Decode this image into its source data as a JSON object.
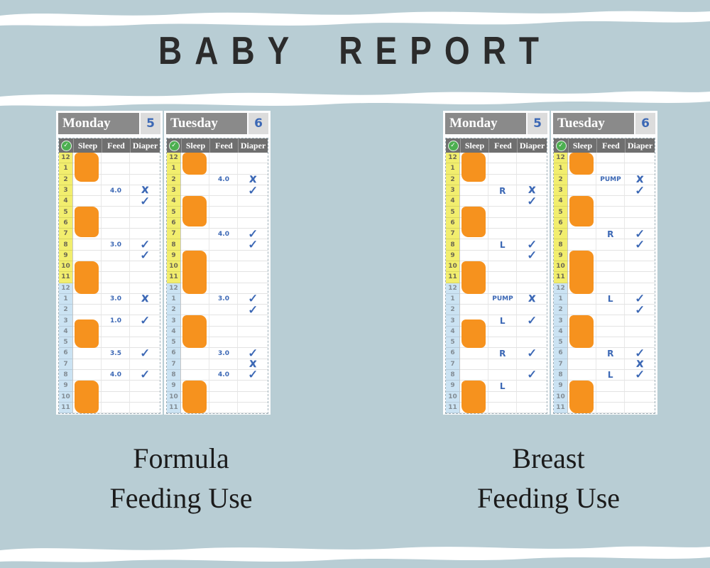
{
  "title": "BABY REPORT",
  "captions": {
    "formula": {
      "line1": "Formula",
      "line2": "Feeding Use"
    },
    "breast": {
      "line1": "Breast",
      "line2": "Feeding Use"
    }
  },
  "table": {
    "columns": [
      "Sleep",
      "Feed",
      "Diaper"
    ],
    "check_header_icon": "check-circle-icon",
    "check_glyph": "✓",
    "x_glyph": "X",
    "hours_am": [
      "12",
      "1",
      "2",
      "3",
      "4",
      "5",
      "6",
      "7",
      "8",
      "9",
      "10",
      "11"
    ],
    "hours_pm": [
      "12",
      "1",
      "2",
      "3",
      "4",
      "5",
      "6",
      "7",
      "8",
      "9",
      "10",
      "11"
    ]
  },
  "charts": [
    {
      "group": "formula",
      "day": "Monday",
      "day_number": "5",
      "sleep_blocks": [
        {
          "start": 0,
          "span": 2.7
        },
        {
          "start": 5,
          "span": 2.8
        },
        {
          "start": 10,
          "span": 3
        },
        {
          "start": 15.4,
          "span": 2.6
        },
        {
          "start": 21,
          "span": 3
        }
      ],
      "feeds": [
        {
          "row": 3,
          "text": "4.0"
        },
        {
          "row": 8,
          "text": "3.0"
        },
        {
          "row": 13,
          "text": "3.0"
        },
        {
          "row": 15,
          "text": "1.0"
        },
        {
          "row": 18,
          "text": "3.5"
        },
        {
          "row": 20,
          "text": "4.0"
        }
      ],
      "diapers": [
        {
          "row": 3,
          "mark": "x"
        },
        {
          "row": 4,
          "mark": "check"
        },
        {
          "row": 8,
          "mark": "check"
        },
        {
          "row": 9,
          "mark": "check"
        },
        {
          "row": 13,
          "mark": "x"
        },
        {
          "row": 15,
          "mark": "check"
        },
        {
          "row": 18,
          "mark": "check"
        },
        {
          "row": 20,
          "mark": "check"
        }
      ]
    },
    {
      "group": "formula",
      "day": "Tuesday",
      "day_number": "6",
      "sleep_blocks": [
        {
          "start": 0,
          "span": 2
        },
        {
          "start": 4,
          "span": 2.8
        },
        {
          "start": 9,
          "span": 4
        },
        {
          "start": 15,
          "span": 3
        },
        {
          "start": 21,
          "span": 3
        }
      ],
      "feeds": [
        {
          "row": 2,
          "text": "4.0"
        },
        {
          "row": 7,
          "text": "4.0"
        },
        {
          "row": 13,
          "text": "3.0"
        },
        {
          "row": 18,
          "text": "3.0"
        },
        {
          "row": 20,
          "text": "4.0"
        }
      ],
      "diapers": [
        {
          "row": 2,
          "mark": "x"
        },
        {
          "row": 3,
          "mark": "check"
        },
        {
          "row": 7,
          "mark": "check"
        },
        {
          "row": 8,
          "mark": "check"
        },
        {
          "row": 13,
          "mark": "check"
        },
        {
          "row": 14,
          "mark": "check"
        },
        {
          "row": 18,
          "mark": "check"
        },
        {
          "row": 19,
          "mark": "x"
        },
        {
          "row": 20,
          "mark": "check"
        }
      ]
    },
    {
      "group": "breast",
      "day": "Monday",
      "day_number": "5",
      "sleep_blocks": [
        {
          "start": 0,
          "span": 2.7
        },
        {
          "start": 5,
          "span": 2.8
        },
        {
          "start": 10,
          "span": 3
        },
        {
          "start": 15.4,
          "span": 2.6
        },
        {
          "start": 21,
          "span": 3
        }
      ],
      "feeds": [
        {
          "row": 3,
          "text": "R"
        },
        {
          "row": 8,
          "text": "L"
        },
        {
          "row": 13,
          "text": "PUMP"
        },
        {
          "row": 15,
          "text": "L"
        },
        {
          "row": 18,
          "text": "R"
        },
        {
          "row": 21,
          "text": "L"
        }
      ],
      "diapers": [
        {
          "row": 3,
          "mark": "x"
        },
        {
          "row": 4,
          "mark": "check"
        },
        {
          "row": 8,
          "mark": "check"
        },
        {
          "row": 9,
          "mark": "check"
        },
        {
          "row": 13,
          "mark": "x"
        },
        {
          "row": 15,
          "mark": "check"
        },
        {
          "row": 18,
          "mark": "check"
        },
        {
          "row": 20,
          "mark": "check"
        }
      ]
    },
    {
      "group": "breast",
      "day": "Tuesday",
      "day_number": "6",
      "sleep_blocks": [
        {
          "start": 0,
          "span": 2
        },
        {
          "start": 4,
          "span": 2.8
        },
        {
          "start": 9,
          "span": 4
        },
        {
          "start": 15,
          "span": 3
        },
        {
          "start": 21,
          "span": 3
        }
      ],
      "feeds": [
        {
          "row": 2,
          "text": "PUMP"
        },
        {
          "row": 7,
          "text": "R"
        },
        {
          "row": 13,
          "text": "L"
        },
        {
          "row": 18,
          "text": "R"
        },
        {
          "row": 20,
          "text": "L"
        }
      ],
      "diapers": [
        {
          "row": 2,
          "mark": "x"
        },
        {
          "row": 3,
          "mark": "check"
        },
        {
          "row": 7,
          "mark": "check"
        },
        {
          "row": 8,
          "mark": "check"
        },
        {
          "row": 13,
          "mark": "check"
        },
        {
          "row": 14,
          "mark": "check"
        },
        {
          "row": 18,
          "mark": "check"
        },
        {
          "row": 19,
          "mark": "x"
        },
        {
          "row": 20,
          "mark": "check"
        }
      ]
    }
  ],
  "colors": {
    "bg": "#b8cdd4",
    "panel": "#fdfdfe",
    "header_bar": "#8a8a8a",
    "number_box": "#dcdcdc",
    "thead": "#6f6f6f",
    "am_yellow": "#f2ee6e",
    "pm_blue": "#cbe3f3",
    "orange": "#f6921e",
    "ink_blue": "#3c68b5",
    "green": "#4caf50",
    "title_ink": "#2b2b2b",
    "caption_ink": "#1b1b1b",
    "brush_white": "#ffffff"
  }
}
